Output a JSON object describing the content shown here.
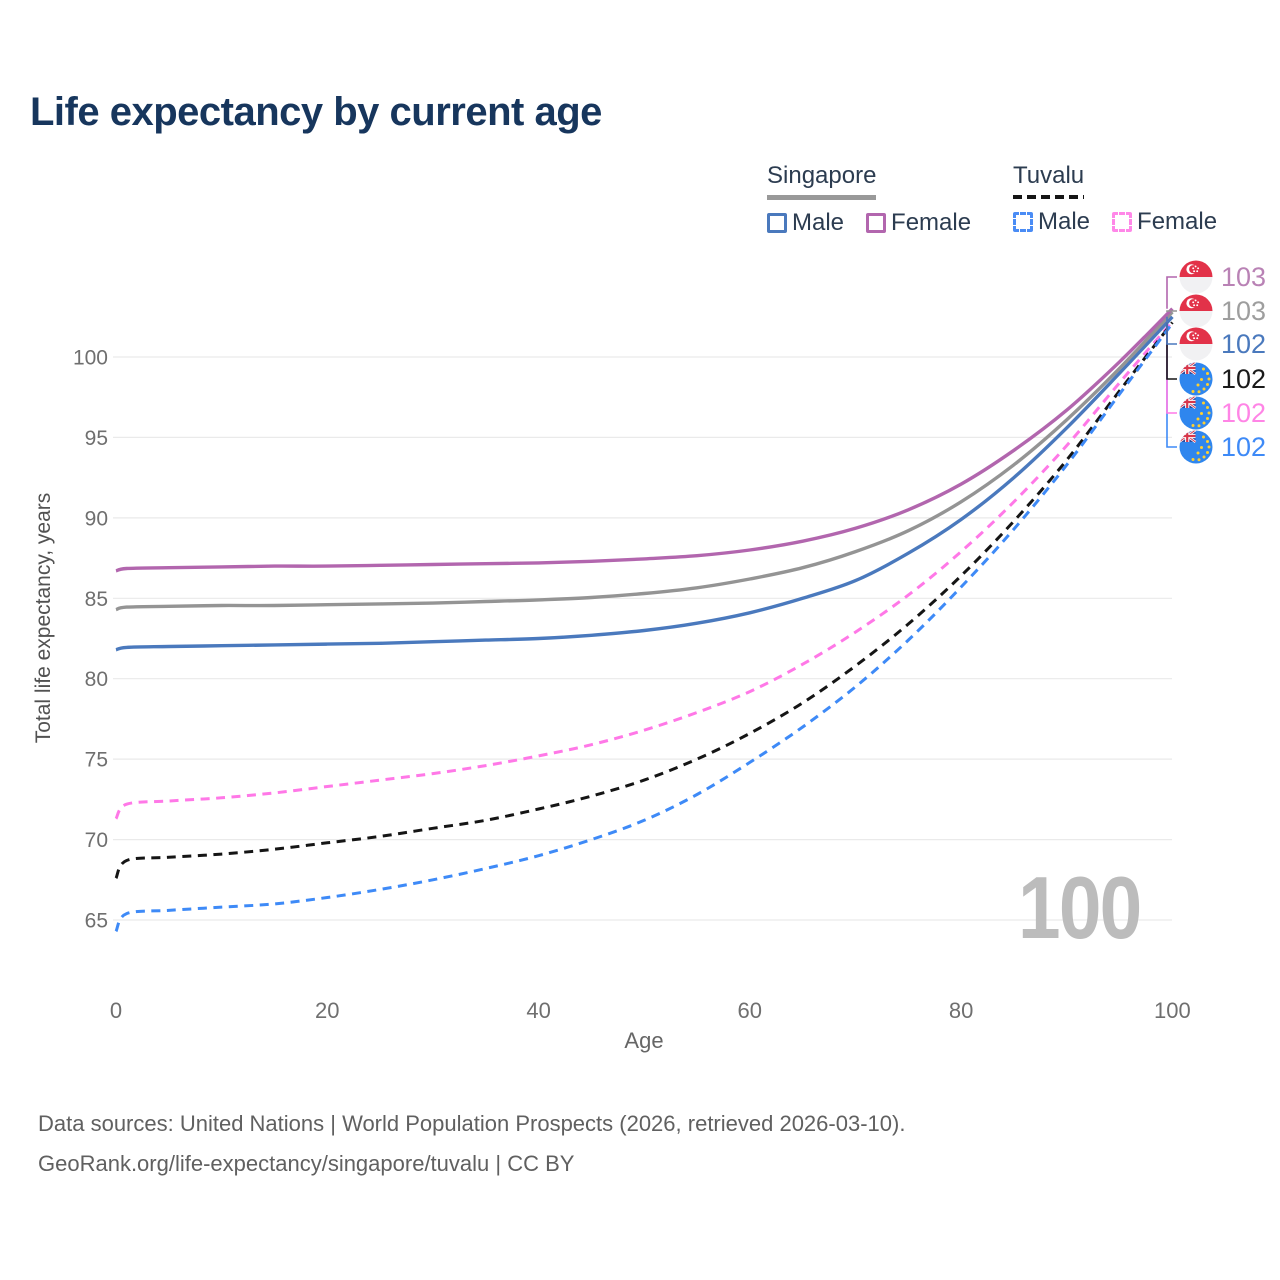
{
  "title": "Life expectancy by current age",
  "watermark": "100",
  "legend": {
    "groups": [
      {
        "name": "Singapore",
        "line_style": "solid",
        "line_color": "#999999",
        "items": [
          {
            "label": "Male",
            "color": "#4a79bd",
            "dash": false
          },
          {
            "label": "Female",
            "color": "#b266ae",
            "dash": false
          }
        ]
      },
      {
        "name": "Tuvalu",
        "line_style": "dashed",
        "line_color": "#151515",
        "items": [
          {
            "label": "Male",
            "color": "#4a8cf5",
            "dash": true
          },
          {
            "label": "Female",
            "color": "#ff87e8",
            "dash": true
          }
        ]
      }
    ]
  },
  "footer": {
    "line1": "Data sources: United Nations | World Population Prospects (2026, retrieved 2026-03-10).",
    "line2": "GeoRank.org/life-expectancy/singapore/tuvalu | CC BY"
  },
  "chart_data": {
    "type": "line",
    "title": "Life expectancy by current age",
    "xlabel": "Age",
    "ylabel": "Total life expectancy, years",
    "xlim": [
      0,
      100
    ],
    "ylim": [
      63,
      104
    ],
    "x_ticks": [
      0,
      20,
      40,
      60,
      80,
      100
    ],
    "y_ticks": [
      65,
      70,
      75,
      80,
      85,
      90,
      95,
      100
    ],
    "grid": "horizontal",
    "legend_position": "top-right",
    "x": [
      0,
      1,
      5,
      10,
      15,
      20,
      25,
      30,
      35,
      40,
      45,
      50,
      55,
      60,
      65,
      70,
      75,
      80,
      85,
      90,
      95,
      100
    ],
    "series": [
      {
        "id": "tv-female",
        "country": "Tuvalu",
        "sex": "Female",
        "flag": "tv",
        "color": "#ff78e7",
        "dash": true,
        "end_label": "102",
        "label_color": "#ff85e6",
        "values": [
          71.3,
          72.2,
          72.4,
          72.6,
          72.9,
          73.3,
          73.7,
          74.1,
          74.6,
          75.2,
          75.9,
          76.8,
          77.9,
          79.2,
          80.9,
          82.9,
          85.2,
          87.9,
          91.0,
          94.5,
          98.4,
          102.2
        ]
      },
      {
        "id": "tv-all",
        "country": "Tuvalu",
        "sex": "Both sexes",
        "flag": "tv",
        "color": "#151515",
        "dash": true,
        "end_label": "102",
        "label_color": "#1a1a1a",
        "values": [
          67.6,
          68.7,
          68.9,
          69.1,
          69.4,
          69.8,
          70.2,
          70.7,
          71.2,
          71.9,
          72.7,
          73.7,
          75.0,
          76.6,
          78.5,
          80.8,
          83.4,
          86.4,
          89.8,
          93.6,
          97.9,
          102.15
        ]
      },
      {
        "id": "tv-male",
        "country": "Tuvalu",
        "sex": "Male",
        "flag": "tv",
        "color": "#3e8af7",
        "dash": true,
        "end_label": "102",
        "label_color": "#3e8af7",
        "values": [
          64.3,
          65.4,
          65.6,
          65.8,
          66.0,
          66.4,
          66.9,
          67.5,
          68.2,
          69.0,
          70.0,
          71.2,
          72.8,
          74.8,
          77.0,
          79.5,
          82.4,
          85.7,
          89.3,
          93.3,
          97.7,
          102.1
        ]
      },
      {
        "id": "sg-male",
        "country": "Singapore",
        "sex": "Male",
        "flag": "sg",
        "color": "#4a79bd",
        "dash": false,
        "end_label": "102",
        "label_color": "#4a79bd",
        "values": [
          81.8,
          81.95,
          82.0,
          82.05,
          82.1,
          82.15,
          82.2,
          82.3,
          82.4,
          82.5,
          82.7,
          83.0,
          83.45,
          84.1,
          85.0,
          86.1,
          87.8,
          89.9,
          92.5,
          95.6,
          99.0,
          102.5
        ]
      },
      {
        "id": "sg-all",
        "country": "Singapore",
        "sex": "Both sexes",
        "flag": "sg",
        "color": "#949494",
        "dash": false,
        "end_label": "103",
        "label_color": "#9e9e9e",
        "values": [
          84.3,
          84.45,
          84.5,
          84.55,
          84.55,
          84.6,
          84.65,
          84.7,
          84.8,
          84.9,
          85.05,
          85.3,
          85.65,
          86.2,
          86.9,
          87.9,
          89.2,
          91.0,
          93.3,
          96.1,
          99.3,
          102.8
        ]
      },
      {
        "id": "sg-female",
        "country": "Singapore",
        "sex": "Female",
        "flag": "sg",
        "color": "#b266ae",
        "dash": false,
        "end_label": "103",
        "label_color": "#b982b5",
        "values": [
          86.7,
          86.85,
          86.9,
          86.95,
          87.0,
          87.0,
          87.05,
          87.1,
          87.15,
          87.2,
          87.3,
          87.45,
          87.65,
          88.0,
          88.55,
          89.35,
          90.5,
          92.1,
          94.2,
          96.7,
          99.7,
          103.0
        ]
      }
    ]
  }
}
